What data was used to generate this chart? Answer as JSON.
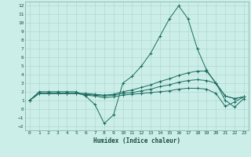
{
  "xlabel": "Humidex (Indice chaleur)",
  "bg_color": "#cceee8",
  "grid_color": "#aad4cc",
  "line_color": "#1a6b60",
  "xlim": [
    -0.5,
    23.5
  ],
  "ylim": [
    -2.5,
    12.5
  ],
  "yticks": [
    -2,
    -1,
    0,
    1,
    2,
    3,
    4,
    5,
    6,
    7,
    8,
    9,
    10,
    11,
    12
  ],
  "xticks": [
    0,
    1,
    2,
    3,
    4,
    5,
    6,
    7,
    8,
    9,
    10,
    11,
    12,
    13,
    14,
    15,
    16,
    17,
    18,
    19,
    20,
    21,
    22,
    23
  ],
  "series": {
    "line1": {
      "x": [
        0,
        1,
        2,
        3,
        4,
        5,
        6,
        7,
        8,
        9,
        10,
        11,
        12,
        13,
        14,
        15,
        16,
        17,
        18,
        19,
        20,
        21,
        22,
        23
      ],
      "y": [
        1,
        2,
        2,
        2,
        2,
        2,
        1.5,
        0.5,
        -1.7,
        -0.7,
        3,
        3.8,
        5,
        6.5,
        8.5,
        10.5,
        12,
        10.5,
        7,
        4.5,
        3,
        1,
        0.2,
        1.2
      ]
    },
    "line2": {
      "x": [
        0,
        1,
        2,
        3,
        4,
        5,
        6,
        7,
        8,
        9,
        10,
        11,
        12,
        13,
        14,
        15,
        16,
        17,
        18,
        19,
        20,
        21,
        22,
        23
      ],
      "y": [
        1,
        1.8,
        1.8,
        1.8,
        1.8,
        1.8,
        1.8,
        1.7,
        1.6,
        1.7,
        2.0,
        2.2,
        2.5,
        2.8,
        3.2,
        3.5,
        3.9,
        4.2,
        4.4,
        4.4,
        3.0,
        1.5,
        1.2,
        1.4
      ]
    },
    "line3": {
      "x": [
        0,
        1,
        2,
        3,
        4,
        5,
        6,
        7,
        8,
        9,
        10,
        11,
        12,
        13,
        14,
        15,
        16,
        17,
        18,
        19,
        20,
        21,
        22,
        23
      ],
      "y": [
        1,
        1.8,
        1.8,
        1.8,
        1.8,
        1.8,
        1.7,
        1.6,
        1.5,
        1.6,
        1.8,
        1.9,
        2.1,
        2.3,
        2.6,
        2.8,
        3.1,
        3.3,
        3.4,
        3.3,
        3.0,
        1.5,
        1.2,
        1.4
      ]
    },
    "line4": {
      "x": [
        0,
        1,
        2,
        3,
        4,
        5,
        6,
        7,
        8,
        9,
        10,
        11,
        12,
        13,
        14,
        15,
        16,
        17,
        18,
        19,
        20,
        21,
        22,
        23
      ],
      "y": [
        1,
        1.8,
        1.8,
        1.8,
        1.8,
        1.8,
        1.6,
        1.5,
        1.3,
        1.4,
        1.6,
        1.7,
        1.8,
        1.9,
        2.0,
        2.1,
        2.3,
        2.4,
        2.4,
        2.3,
        1.8,
        0.3,
        0.8,
        1.4
      ]
    }
  }
}
